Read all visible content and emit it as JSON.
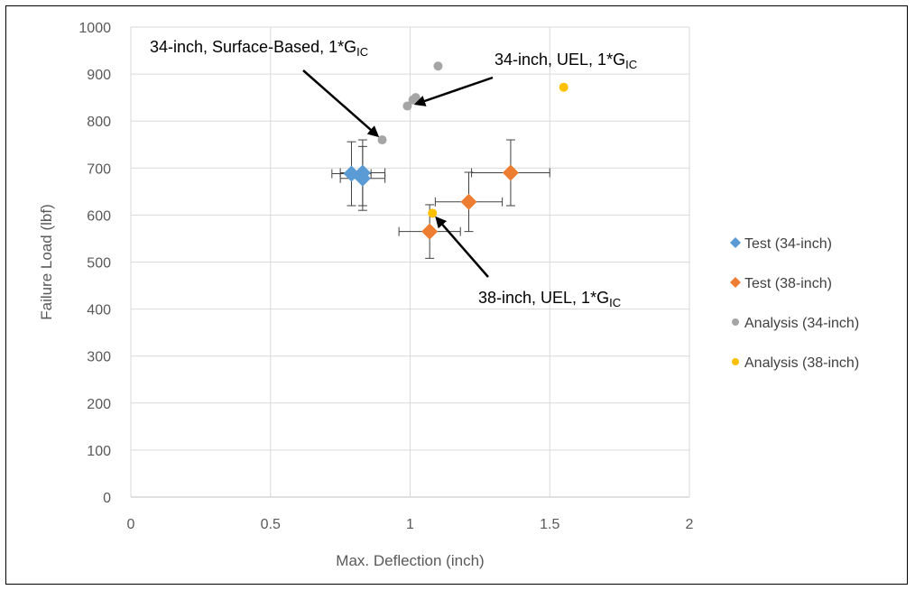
{
  "chart_data": {
    "type": "scatter",
    "xlabel": "Max. Deflection (inch)",
    "ylabel": "Failure Load (lbf)",
    "xlim": [
      0,
      2
    ],
    "ylim": [
      0,
      1000
    ],
    "xticks": [
      "0",
      "0.5",
      "1",
      "1.5",
      "2"
    ],
    "yticks": [
      "0",
      "100",
      "200",
      "300",
      "400",
      "500",
      "600",
      "700",
      "800",
      "900",
      "1000"
    ],
    "grid": true,
    "legend_position": "right",
    "series": [
      {
        "name": "Test (34-inch)",
        "marker": "diamond",
        "color": "#5B9BD5",
        "points": [
          {
            "x": 0.79,
            "y": 688,
            "xerr": 0.07,
            "yerr": 68
          },
          {
            "x": 0.83,
            "y": 690,
            "xerr": 0.08,
            "yerr": 70
          },
          {
            "x": 0.83,
            "y": 678,
            "xerr": 0.08,
            "yerr": 68
          }
        ]
      },
      {
        "name": "Test (38-inch)",
        "marker": "diamond",
        "color": "#ED7D31",
        "points": [
          {
            "x": 1.07,
            "y": 565,
            "xerr": 0.11,
            "yerr": 57
          },
          {
            "x": 1.21,
            "y": 628,
            "xerr": 0.12,
            "yerr": 63
          },
          {
            "x": 1.36,
            "y": 690,
            "xerr": 0.14,
            "yerr": 70
          }
        ]
      },
      {
        "name": "Analysis (34-inch)",
        "marker": "circle",
        "color": "#A5A5A5",
        "points": [
          {
            "x": 0.99,
            "y": 832
          },
          {
            "x": 1.01,
            "y": 845
          },
          {
            "x": 1.02,
            "y": 850
          },
          {
            "x": 1.1,
            "y": 917
          },
          {
            "x": 0.9,
            "y": 760
          }
        ]
      },
      {
        "name": "Analysis (38-inch)",
        "marker": "circle",
        "color": "#FFC000",
        "points": [
          {
            "x": 1.08,
            "y": 604
          },
          {
            "x": 1.55,
            "y": 872
          }
        ]
      }
    ],
    "annotations": [
      {
        "text": "34-inch, Surface-Based, 1*G",
        "sub": "IC",
        "arrow_to": {
          "x": 0.9,
          "y": 760
        }
      },
      {
        "text": "34-inch, UEL, 1*G",
        "sub": "IC",
        "arrow_to": {
          "x": 1.0,
          "y": 832
        }
      },
      {
        "text": "38-inch, UEL, 1*G",
        "sub": "IC",
        "arrow_to": {
          "x": 1.08,
          "y": 604
        }
      }
    ]
  }
}
